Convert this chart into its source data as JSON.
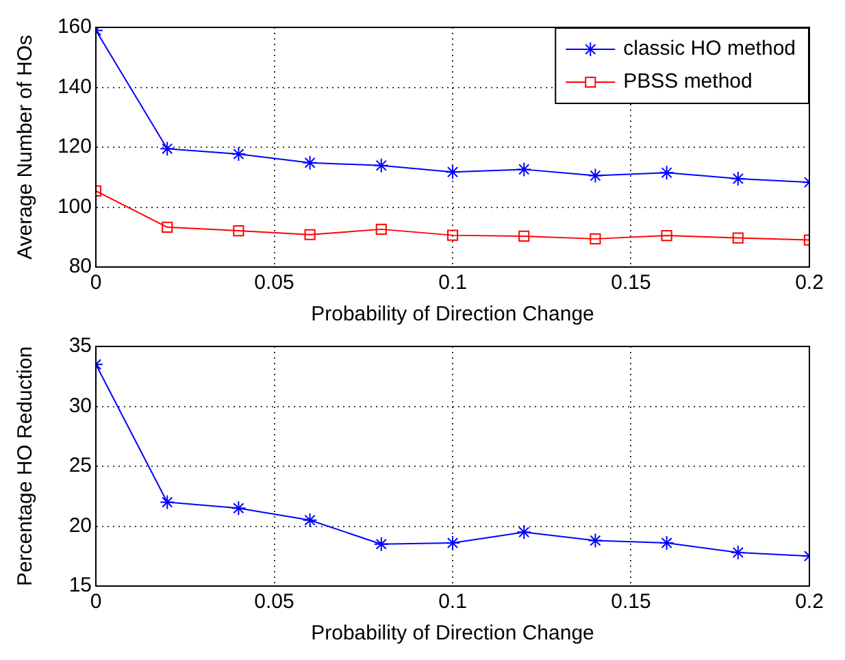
{
  "chart_data": [
    {
      "type": "line",
      "xlabel": "Probability of Direction Change",
      "ylabel": "Average Number of HOs",
      "x": [
        0,
        0.02,
        0.04,
        0.06,
        0.08,
        0.1,
        0.12,
        0.14,
        0.16,
        0.18,
        0.2
      ],
      "series": [
        {
          "name": "classic HO method",
          "color": "#0000ff",
          "marker": "cross",
          "values": [
            159,
            119.5,
            117.7,
            114.8,
            113.9,
            111.7,
            112.6,
            110.5,
            111.5,
            109.5,
            108.3
          ]
        },
        {
          "name": "PBSS method",
          "color": "#ff0000",
          "marker": "square",
          "values": [
            105.4,
            93.3,
            92.1,
            90.8,
            92.6,
            90.6,
            90.3,
            89.4,
            90.5,
            89.7,
            89
          ]
        }
      ],
      "xlim": [
        0,
        0.2
      ],
      "xticks": [
        0,
        0.05,
        0.1,
        0.15,
        0.2
      ],
      "ylim": [
        80,
        160
      ],
      "yticks": [
        80,
        100,
        120,
        140,
        160
      ],
      "grid": true,
      "legend": "top right",
      "line_style": "solid"
    },
    {
      "type": "line",
      "xlabel": "Probability of Direction Change",
      "ylabel": "Percentage HO Reduction",
      "x": [
        0,
        0.02,
        0.04,
        0.06,
        0.08,
        0.1,
        0.12,
        0.14,
        0.16,
        0.18,
        0.2
      ],
      "series": [
        {
          "color": "#0000ff",
          "marker": "cross",
          "values": [
            33.5,
            22,
            21.5,
            20.5,
            18.5,
            18.6,
            19.5,
            18.8,
            18.6,
            17.8,
            17.5
          ]
        }
      ],
      "xlim": [
        0,
        0.2
      ],
      "xticks": [
        0,
        0.05,
        0.1,
        0.15,
        0.2
      ],
      "ylim": [
        15,
        35
      ],
      "yticks": [
        15,
        20,
        25,
        30,
        35
      ],
      "grid": true,
      "legend": false,
      "line_style": "solid"
    }
  ]
}
